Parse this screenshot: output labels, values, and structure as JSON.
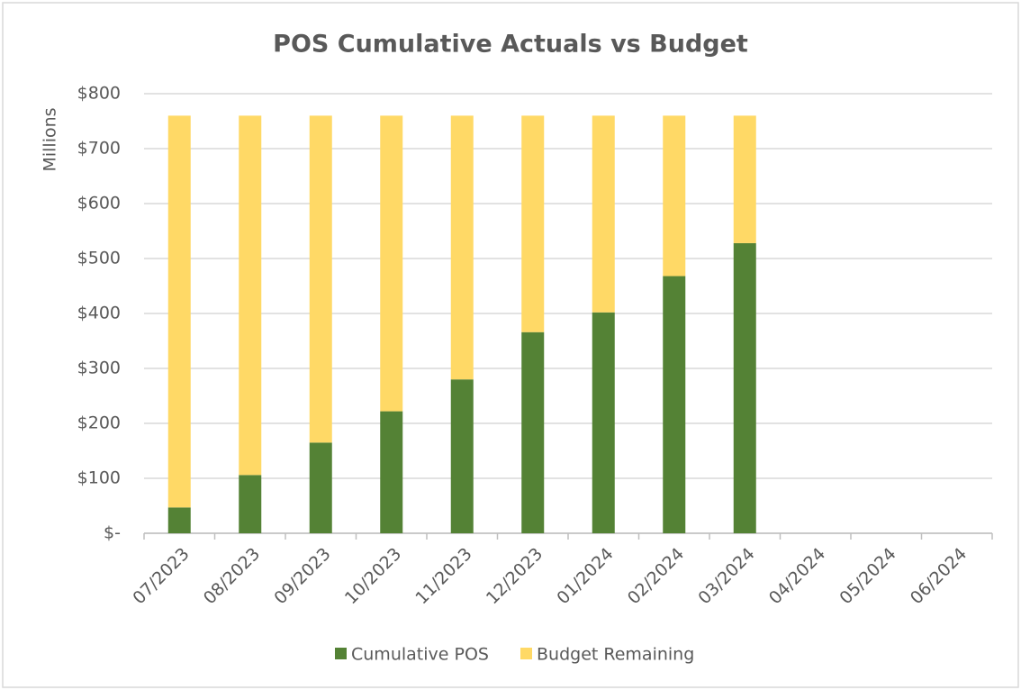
{
  "chart_data": {
    "type": "stacked_bar",
    "title": "POS Cumulative Actuals vs Budget",
    "y_label": "Millions",
    "categories": [
      "07/2023",
      "08/2023",
      "09/2023",
      "10/2023",
      "11/2023",
      "12/2023",
      "01/2024",
      "02/2024",
      "03/2024",
      "04/2024",
      "05/2024",
      "06/2024"
    ],
    "series": [
      {
        "name": "Cumulative POS",
        "color": "#548235",
        "values": [
          47,
          106,
          165,
          222,
          280,
          366,
          402,
          468,
          528,
          null,
          null,
          null
        ]
      },
      {
        "name": "Budget Remaining",
        "color": "#ffd966",
        "values": [
          713,
          654,
          595,
          538,
          480,
          394,
          358,
          292,
          232,
          null,
          null,
          null
        ]
      }
    ],
    "ylim": [
      0,
      800
    ],
    "yticks": [
      {
        "value": 0,
        "label": "$-"
      },
      {
        "value": 100,
        "label": "$100"
      },
      {
        "value": 200,
        "label": "$200"
      },
      {
        "value": 300,
        "label": "$300"
      },
      {
        "value": 400,
        "label": "$400"
      },
      {
        "value": 500,
        "label": "$500"
      },
      {
        "value": 600,
        "label": "$600"
      },
      {
        "value": 700,
        "label": "$700"
      },
      {
        "value": 800,
        "label": "$800"
      }
    ],
    "grid": true,
    "legend": "bottom"
  }
}
